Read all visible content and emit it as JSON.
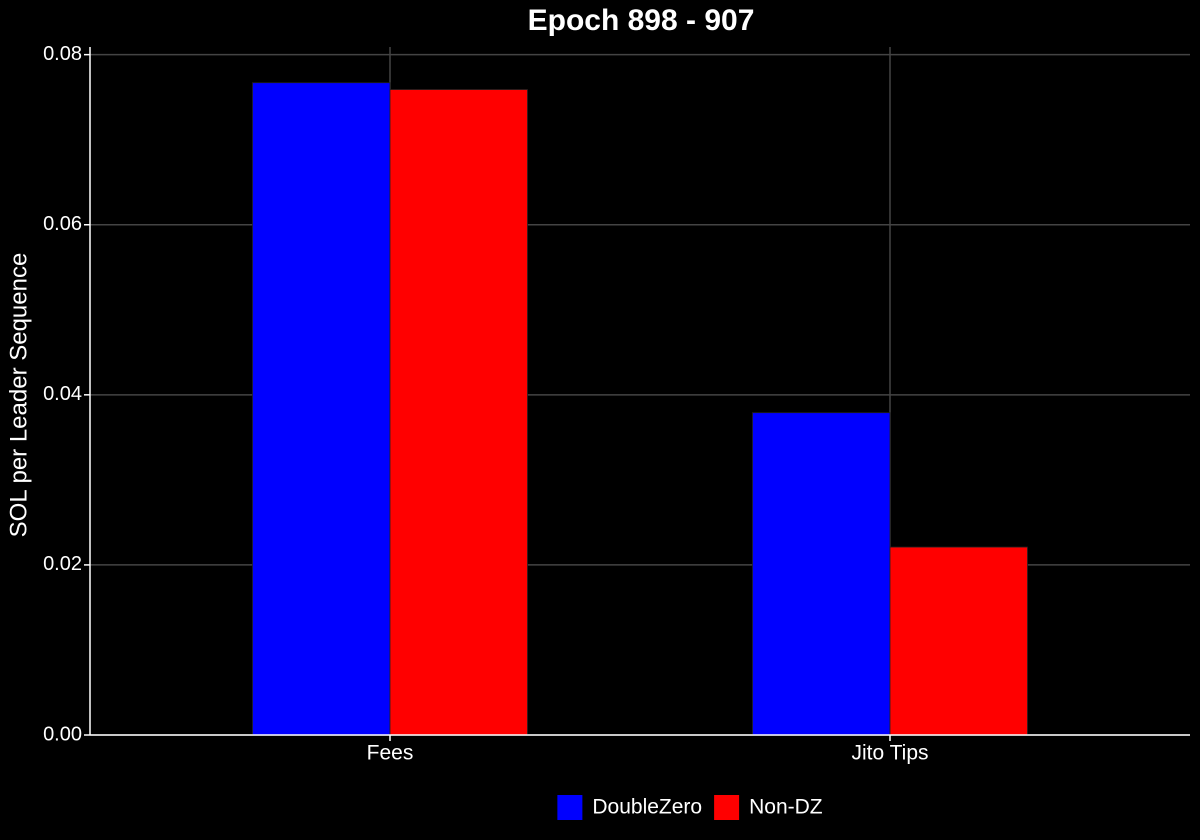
{
  "chart_data": {
    "type": "bar",
    "title": "Epoch 898 - 907",
    "y_label": "SOL per Leader Sequence",
    "categories": [
      "Fees",
      "Jito Tips"
    ],
    "series": [
      {
        "name": "DoubleZero",
        "color": "#0000ff",
        "values": [
          0.0767,
          0.0379
        ]
      },
      {
        "name": "Non-DZ",
        "color": "#ff0000",
        "values": [
          0.0759,
          0.0221
        ]
      }
    ],
    "ylim": [
      0,
      0.0809
    ],
    "yticks": [
      {
        "value": 0,
        "label": "0.00"
      },
      {
        "value": 0.02,
        "label": "0.02"
      },
      {
        "value": 0.04,
        "label": "0.04"
      },
      {
        "value": 0.06,
        "label": "0.06"
      },
      {
        "value": 0.08,
        "label": "0.08"
      }
    ],
    "grid": true,
    "legend": "bottom"
  }
}
